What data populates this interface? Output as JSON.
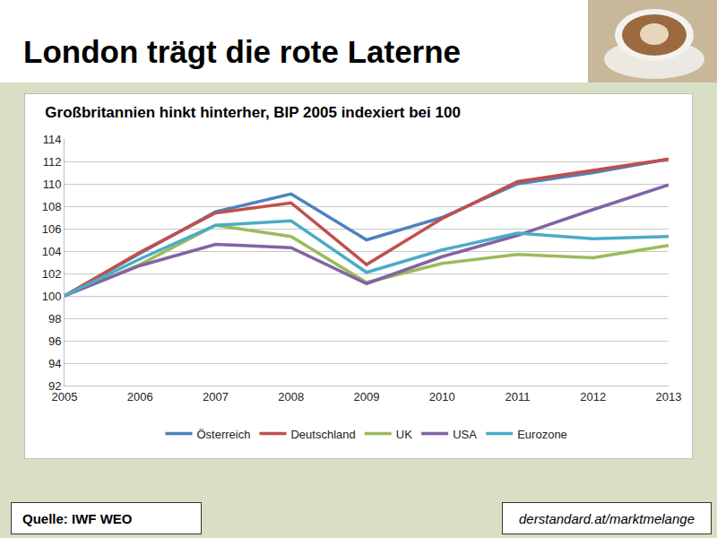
{
  "header": {
    "title": "London trägt die rote Laterne"
  },
  "footer": {
    "source": "Quelle: IWF WEO",
    "url": "derstandard.at/marktmelange"
  },
  "chart_data": {
    "type": "line",
    "title": "Großbritannien hinkt hinterher, BIP 2005 indexiert bei 100",
    "categories": [
      "2005",
      "2006",
      "2007",
      "2008",
      "2009",
      "2010",
      "2011",
      "2012",
      "2013"
    ],
    "series": [
      {
        "name": "Österreich",
        "color": "#4f81bd",
        "values": [
          100,
          103.8,
          107.5,
          109.1,
          105.0,
          107.0,
          110.0,
          111.0,
          112.2
        ]
      },
      {
        "name": "Deutschland",
        "color": "#c0504d",
        "values": [
          100,
          103.9,
          107.4,
          108.3,
          102.8,
          106.9,
          110.2,
          111.2,
          112.2
        ]
      },
      {
        "name": "UK",
        "color": "#9bbb59",
        "values": [
          100,
          102.8,
          106.3,
          105.3,
          101.2,
          102.9,
          103.7,
          103.4,
          104.5
        ]
      },
      {
        "name": "USA",
        "color": "#8064a2",
        "values": [
          100,
          102.7,
          104.6,
          104.3,
          101.1,
          103.5,
          105.4,
          107.7,
          109.9
        ]
      },
      {
        "name": "Eurozone",
        "color": "#4bacc6",
        "values": [
          100,
          103.3,
          106.3,
          106.7,
          102.1,
          104.1,
          105.6,
          105.1,
          105.3
        ]
      }
    ],
    "ylim": [
      92,
      114
    ],
    "yticks": [
      92,
      94,
      96,
      98,
      100,
      102,
      104,
      106,
      108,
      110,
      112,
      114
    ],
    "grid": true,
    "legend": "bottom"
  }
}
